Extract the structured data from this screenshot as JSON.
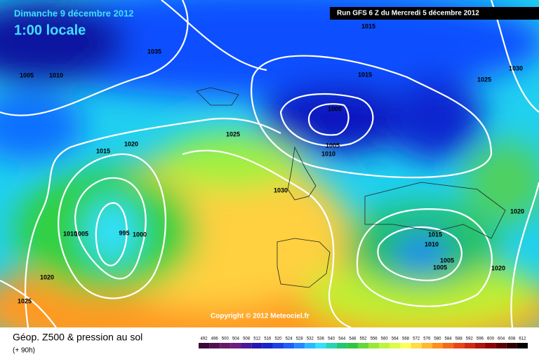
{
  "header": {
    "date": "Dimanche 9 décembre 2012",
    "time": "1:00 locale",
    "run": "Run GFS 6 Z du Mercredi 5 décembre 2012"
  },
  "copyright": "Copyright © 2012 Meteociel.fr",
  "footer": {
    "title": "Géop. Z500 & pression au sol",
    "lead": "(+ 90h)"
  },
  "isobar_labels": [
    "1015",
    "1035",
    "1005",
    "1010",
    "1015",
    "1030",
    "1025",
    "1000",
    "1025",
    "1015",
    "1020",
    "1005",
    "1010",
    "1030",
    "1010",
    "1005",
    "995",
    "1000",
    "1015",
    "1010",
    "1005",
    "1005",
    "1020",
    "1020",
    "1020",
    "1025"
  ],
  "legend": {
    "values": [
      492,
      496,
      500,
      504,
      508,
      512,
      516,
      520,
      524,
      528,
      532,
      536,
      540,
      544,
      548,
      552,
      556,
      560,
      564,
      568,
      572,
      576,
      580,
      584,
      588,
      592,
      596,
      600,
      604,
      608,
      612
    ]
  }
}
